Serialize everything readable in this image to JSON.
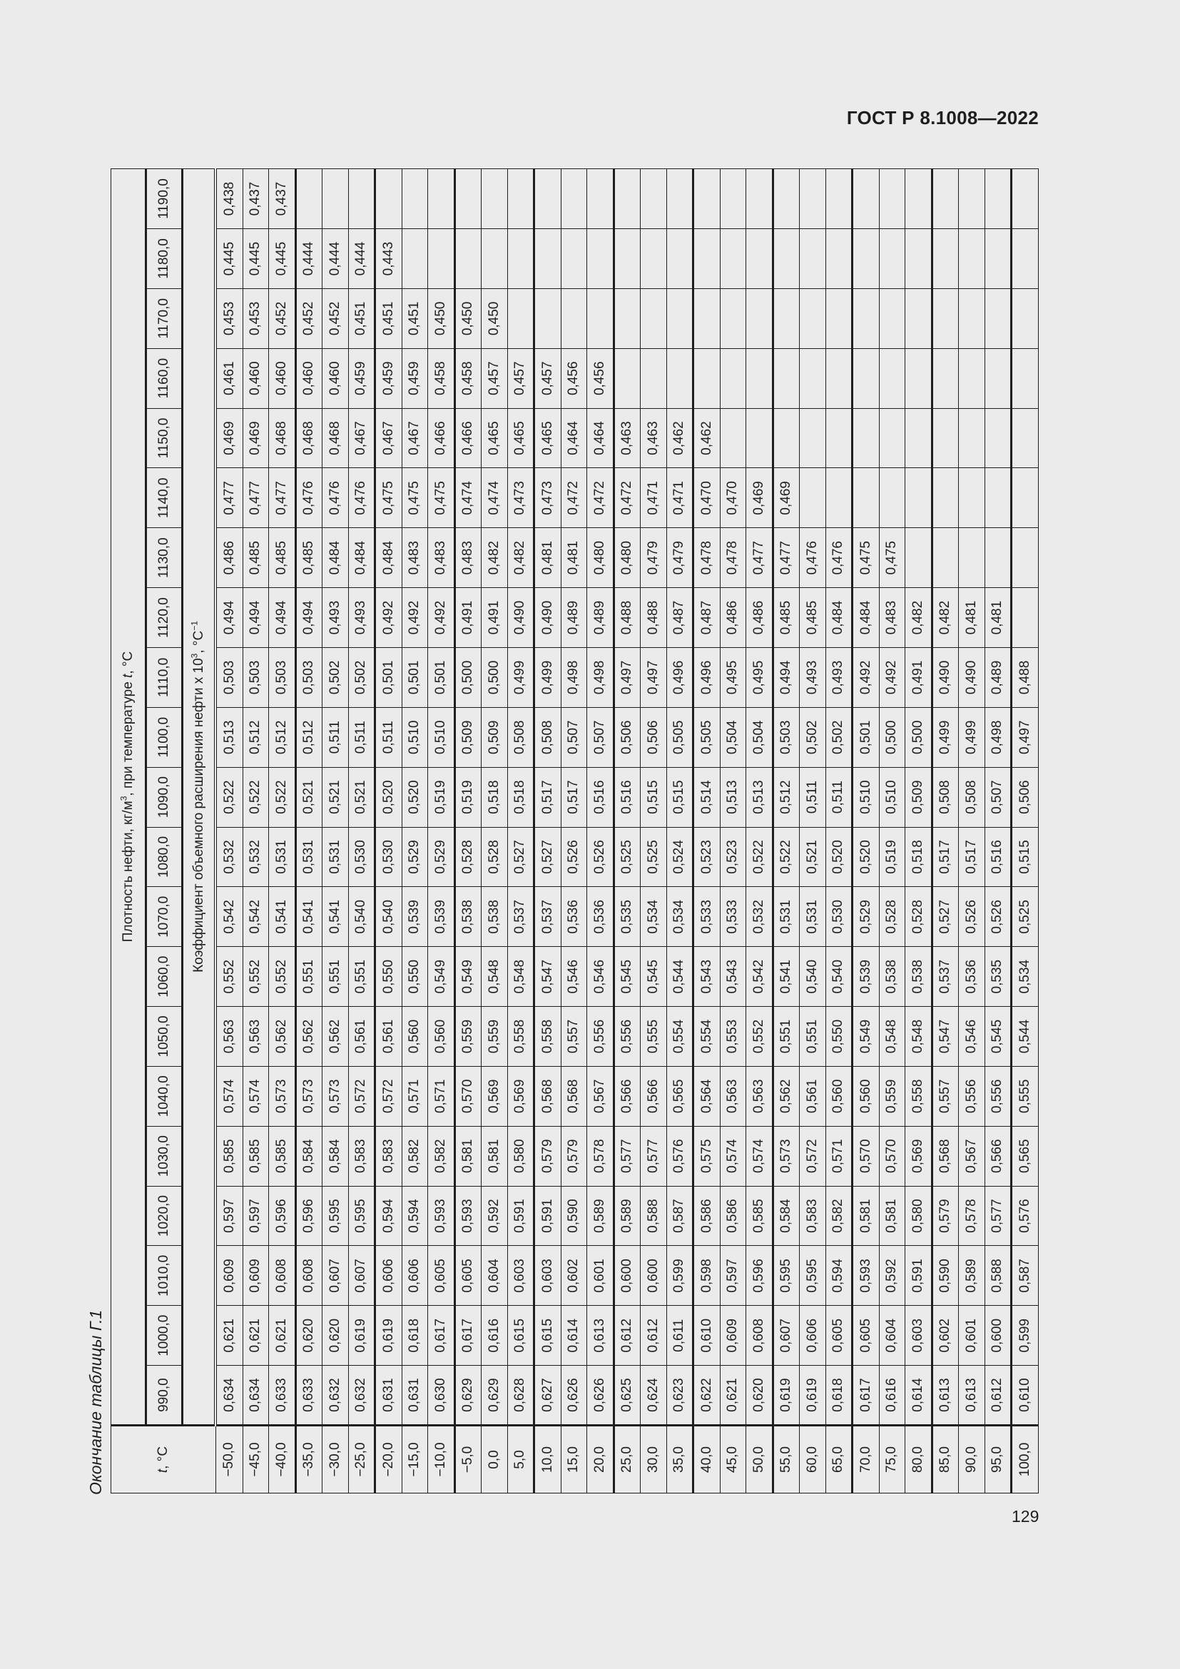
{
  "header": {
    "doc_id": "ГОСТ Р 8.1008—2022"
  },
  "caption": "Окончание таблицы Г.1",
  "page_number": "129",
  "table": {
    "t_header": "t, °C",
    "group_header": "Плотность нефти, кг/м³, при температуре t, °C",
    "coef_header": "Коэффициент объемного расширения нефти x 10³, °C⁻¹",
    "densities": [
      "990,0",
      "1000,0",
      "1010,0",
      "1020,0",
      "1030,0",
      "1040,0",
      "1050,0",
      "1060,0",
      "1070,0",
      "1080,0",
      "1090,0",
      "1100,0",
      "1110,0",
      "1120,0",
      "1130,0",
      "1140,0",
      "1150,0",
      "1160,0",
      "1170,0",
      "1180,0",
      "1190,0"
    ],
    "rows": [
      {
        "t": "−50,0",
        "v": [
          "0,634",
          "0,621",
          "0,609",
          "0,597",
          "0,585",
          "0,574",
          "0,563",
          "0,552",
          "0,542",
          "0,532",
          "0,522",
          "0,513",
          "0,503",
          "0,494",
          "0,486",
          "0,477",
          "0,469",
          "0,461",
          "0,453",
          "0,445",
          "0,438"
        ]
      },
      {
        "t": "−45,0",
        "v": [
          "0,634",
          "0,621",
          "0,609",
          "0,597",
          "0,585",
          "0,574",
          "0,563",
          "0,552",
          "0,542",
          "0,532",
          "0,522",
          "0,512",
          "0,503",
          "0,494",
          "0,485",
          "0,477",
          "0,469",
          "0,460",
          "0,453",
          "0,445",
          "0,437"
        ]
      },
      {
        "t": "−40,0",
        "v": [
          "0,633",
          "0,621",
          "0,608",
          "0,596",
          "0,585",
          "0,573",
          "0,562",
          "0,552",
          "0,541",
          "0,531",
          "0,522",
          "0,512",
          "0,503",
          "0,494",
          "0,485",
          "0,477",
          "0,468",
          "0,460",
          "0,452",
          "0,445",
          "0,437"
        ]
      },
      {
        "t": "−35,0",
        "v": [
          "0,633",
          "0,620",
          "0,608",
          "0,596",
          "0,584",
          "0,573",
          "0,562",
          "0,551",
          "0,541",
          "0,531",
          "0,521",
          "0,512",
          "0,503",
          "0,494",
          "0,485",
          "0,476",
          "0,468",
          "0,460",
          "0,452",
          "0,444",
          ""
        ]
      },
      {
        "t": "−30,0",
        "v": [
          "0,632",
          "0,620",
          "0,607",
          "0,595",
          "0,584",
          "0,573",
          "0,562",
          "0,551",
          "0,541",
          "0,531",
          "0,521",
          "0,511",
          "0,502",
          "0,493",
          "0,484",
          "0,476",
          "0,468",
          "0,460",
          "0,452",
          "0,444",
          ""
        ]
      },
      {
        "t": "−25,0",
        "v": [
          "0,632",
          "0,619",
          "0,607",
          "0,595",
          "0,583",
          "0,572",
          "0,561",
          "0,551",
          "0,540",
          "0,530",
          "0,521",
          "0,511",
          "0,502",
          "0,493",
          "0,484",
          "0,476",
          "0,467",
          "0,459",
          "0,451",
          "0,444",
          ""
        ]
      },
      {
        "t": "−20,0",
        "v": [
          "0,631",
          "0,619",
          "0,606",
          "0,594",
          "0,583",
          "0,572",
          "0,561",
          "0,550",
          "0,540",
          "0,530",
          "0,520",
          "0,511",
          "0,501",
          "0,492",
          "0,484",
          "0,475",
          "0,467",
          "0,459",
          "0,451",
          "0,443",
          ""
        ]
      },
      {
        "t": "−15,0",
        "v": [
          "0,631",
          "0,618",
          "0,606",
          "0,594",
          "0,582",
          "0,571",
          "0,560",
          "0,550",
          "0,539",
          "0,529",
          "0,520",
          "0,510",
          "0,501",
          "0,492",
          "0,483",
          "0,475",
          "0,467",
          "0,459",
          "0,451",
          "",
          ""
        ]
      },
      {
        "t": "−10,0",
        "v": [
          "0,630",
          "0,617",
          "0,605",
          "0,593",
          "0,582",
          "0,571",
          "0,560",
          "0,549",
          "0,539",
          "0,529",
          "0,519",
          "0,510",
          "0,501",
          "0,492",
          "0,483",
          "0,475",
          "0,466",
          "0,458",
          "0,450",
          "",
          ""
        ]
      },
      {
        "t": "−5,0",
        "v": [
          "0,629",
          "0,617",
          "0,605",
          "0,593",
          "0,581",
          "0,570",
          "0,559",
          "0,549",
          "0,538",
          "0,528",
          "0,519",
          "0,509",
          "0,500",
          "0,491",
          "0,483",
          "0,474",
          "0,466",
          "0,458",
          "0,450",
          "",
          ""
        ]
      },
      {
        "t": "0,0",
        "v": [
          "0,629",
          "0,616",
          "0,604",
          "0,592",
          "0,581",
          "0,569",
          "0,559",
          "0,548",
          "0,538",
          "0,528",
          "0,518",
          "0,509",
          "0,500",
          "0,491",
          "0,482",
          "0,474",
          "0,465",
          "0,457",
          "0,450",
          "",
          ""
        ]
      },
      {
        "t": "5,0",
        "v": [
          "0,628",
          "0,615",
          "0,603",
          "0,591",
          "0,580",
          "0,569",
          "0,558",
          "0,548",
          "0,537",
          "0,527",
          "0,518",
          "0,508",
          "0,499",
          "0,490",
          "0,482",
          "0,473",
          "0,465",
          "0,457",
          "",
          "",
          ""
        ]
      },
      {
        "t": "10,0",
        "v": [
          "0,627",
          "0,615",
          "0,603",
          "0,591",
          "0,579",
          "0,568",
          "0,558",
          "0,547",
          "0,537",
          "0,527",
          "0,517",
          "0,508",
          "0,499",
          "0,490",
          "0,481",
          "0,473",
          "0,465",
          "0,457",
          "",
          "",
          ""
        ]
      },
      {
        "t": "15,0",
        "v": [
          "0,626",
          "0,614",
          "0,602",
          "0,590",
          "0,579",
          "0,568",
          "0,557",
          "0,546",
          "0,536",
          "0,526",
          "0,517",
          "0,507",
          "0,498",
          "0,489",
          "0,481",
          "0,472",
          "0,464",
          "0,456",
          "",
          "",
          ""
        ]
      },
      {
        "t": "20,0",
        "v": [
          "0,626",
          "0,613",
          "0,601",
          "0,589",
          "0,578",
          "0,567",
          "0,556",
          "0,546",
          "0,536",
          "0,526",
          "0,516",
          "0,507",
          "0,498",
          "0,489",
          "0,480",
          "0,472",
          "0,464",
          "0,456",
          "",
          "",
          ""
        ]
      },
      {
        "t": "25,0",
        "v": [
          "0,625",
          "0,612",
          "0,600",
          "0,589",
          "0,577",
          "0,566",
          "0,556",
          "0,545",
          "0,535",
          "0,525",
          "0,516",
          "0,506",
          "0,497",
          "0,488",
          "0,480",
          "0,472",
          "0,463",
          "",
          "",
          "",
          ""
        ]
      },
      {
        "t": "30,0",
        "v": [
          "0,624",
          "0,612",
          "0,600",
          "0,588",
          "0,577",
          "0,566",
          "0,555",
          "0,545",
          "0,534",
          "0,525",
          "0,515",
          "0,506",
          "0,497",
          "0,488",
          "0,479",
          "0,471",
          "0,463",
          "",
          "",
          "",
          ""
        ]
      },
      {
        "t": "35,0",
        "v": [
          "0,623",
          "0,611",
          "0,599",
          "0,587",
          "0,576",
          "0,565",
          "0,554",
          "0,544",
          "0,534",
          "0,524",
          "0,515",
          "0,505",
          "0,496",
          "0,487",
          "0,479",
          "0,471",
          "0,462",
          "",
          "",
          "",
          ""
        ]
      },
      {
        "t": "40,0",
        "v": [
          "0,622",
          "0,610",
          "0,598",
          "0,586",
          "0,575",
          "0,564",
          "0,554",
          "0,543",
          "0,533",
          "0,523",
          "0,514",
          "0,505",
          "0,496",
          "0,487",
          "0,478",
          "0,470",
          "0,462",
          "",
          "",
          "",
          ""
        ]
      },
      {
        "t": "45,0",
        "v": [
          "0,621",
          "0,609",
          "0,597",
          "0,586",
          "0,574",
          "0,563",
          "0,553",
          "0,543",
          "0,533",
          "0,523",
          "0,513",
          "0,504",
          "0,495",
          "0,486",
          "0,478",
          "0,470",
          "",
          "",
          "",
          "",
          ""
        ]
      },
      {
        "t": "50,0",
        "v": [
          "0,620",
          "0,608",
          "0,596",
          "0,585",
          "0,574",
          "0,563",
          "0,552",
          "0,542",
          "0,532",
          "0,522",
          "0,513",
          "0,504",
          "0,495",
          "0,486",
          "0,477",
          "0,469",
          "",
          "",
          "",
          "",
          ""
        ]
      },
      {
        "t": "55,0",
        "v": [
          "0,619",
          "0,607",
          "0,595",
          "0,584",
          "0,573",
          "0,562",
          "0,551",
          "0,541",
          "0,531",
          "0,522",
          "0,512",
          "0,503",
          "0,494",
          "0,485",
          "0,477",
          "0,469",
          "",
          "",
          "",
          "",
          ""
        ]
      },
      {
        "t": "60,0",
        "v": [
          "0,619",
          "0,606",
          "0,595",
          "0,583",
          "0,572",
          "0,561",
          "0,551",
          "0,540",
          "0,531",
          "0,521",
          "0,511",
          "0,502",
          "0,493",
          "0,485",
          "0,476",
          "",
          "",
          "",
          "",
          "",
          ""
        ]
      },
      {
        "t": "65,0",
        "v": [
          "0,618",
          "0,605",
          "0,594",
          "0,582",
          "0,571",
          "0,560",
          "0,550",
          "0,540",
          "0,530",
          "0,520",
          "0,511",
          "0,502",
          "0,493",
          "0,484",
          "0,476",
          "",
          "",
          "",
          "",
          "",
          ""
        ]
      },
      {
        "t": "70,0",
        "v": [
          "0,617",
          "0,605",
          "0,593",
          "0,581",
          "0,570",
          "0,560",
          "0,549",
          "0,539",
          "0,529",
          "0,520",
          "0,510",
          "0,501",
          "0,492",
          "0,484",
          "0,475",
          "",
          "",
          "",
          "",
          "",
          ""
        ]
      },
      {
        "t": "75,0",
        "v": [
          "0,616",
          "0,604",
          "0,592",
          "0,581",
          "0,570",
          "0,559",
          "0,548",
          "0,538",
          "0,528",
          "0,519",
          "0,510",
          "0,500",
          "0,492",
          "0,483",
          "0,475",
          "",
          "",
          "",
          "",
          "",
          ""
        ]
      },
      {
        "t": "80,0",
        "v": [
          "0,614",
          "0,603",
          "0,591",
          "0,580",
          "0,569",
          "0,558",
          "0,548",
          "0,538",
          "0,528",
          "0,518",
          "0,509",
          "0,500",
          "0,491",
          "0,482",
          "",
          "",
          "",
          "",
          "",
          "",
          ""
        ]
      },
      {
        "t": "85,0",
        "v": [
          "0,613",
          "0,602",
          "0,590",
          "0,579",
          "0,568",
          "0,557",
          "0,547",
          "0,537",
          "0,527",
          "0,517",
          "0,508",
          "0,499",
          "0,490",
          "0,482",
          "",
          "",
          "",
          "",
          "",
          "",
          ""
        ]
      },
      {
        "t": "90,0",
        "v": [
          "0,613",
          "0,601",
          "0,589",
          "0,578",
          "0,567",
          "0,556",
          "0,546",
          "0,536",
          "0,526",
          "0,517",
          "0,508",
          "0,499",
          "0,490",
          "0,481",
          "",
          "",
          "",
          "",
          "",
          "",
          ""
        ]
      },
      {
        "t": "95,0",
        "v": [
          "0,612",
          "0,600",
          "0,588",
          "0,577",
          "0,566",
          "0,556",
          "0,545",
          "0,535",
          "0,526",
          "0,516",
          "0,507",
          "0,498",
          "0,489",
          "0,481",
          "",
          "",
          "",
          "",
          "",
          "",
          ""
        ]
      },
      {
        "t": "100,0",
        "v": [
          "0,610",
          "0,599",
          "0,587",
          "0,576",
          "0,565",
          "0,555",
          "0,544",
          "0,534",
          "0,525",
          "0,515",
          "0,506",
          "0,497",
          "0,488",
          "",
          "",
          "",
          "",
          "",
          "",
          "",
          ""
        ]
      }
    ]
  }
}
